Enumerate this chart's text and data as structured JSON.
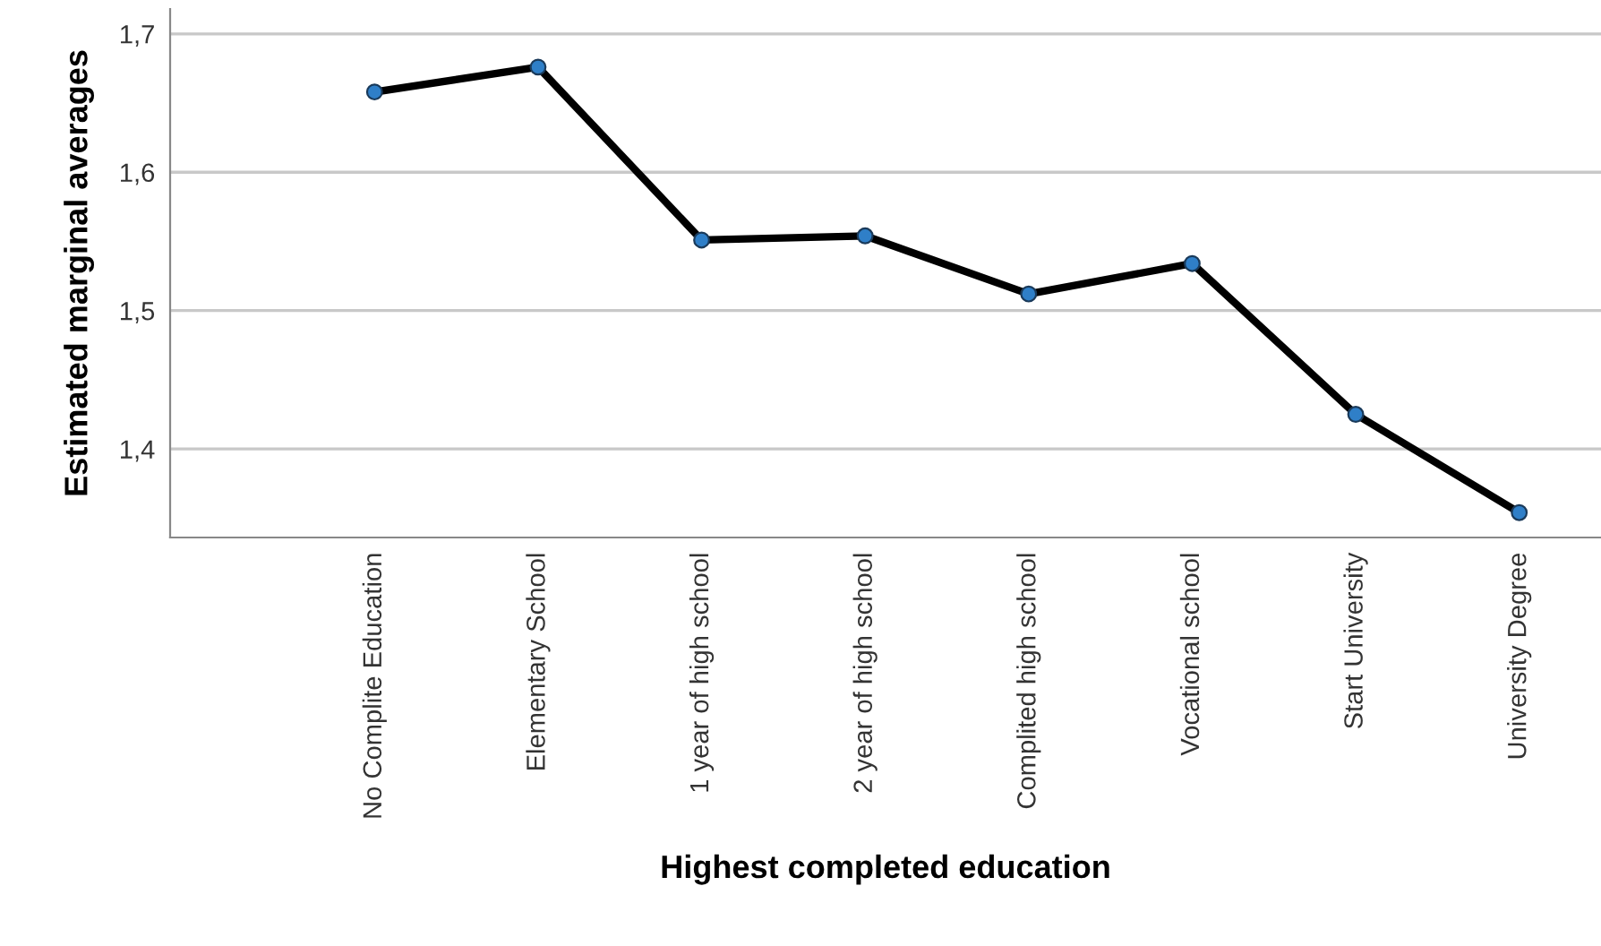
{
  "chart_data": {
    "type": "line",
    "xlabel": "Highest completed education",
    "ylabel": "Estimated marginal averages",
    "categories": [
      "No Complite Education",
      "Elementary School",
      "1 year of high school",
      "2 year of high school",
      "Complited high school",
      "Vocational school",
      "Start University",
      "University Degree"
    ],
    "series": [
      {
        "color": "#000000",
        "values": [
          1.658,
          1.676,
          1.551,
          1.554,
          1.512,
          1.534,
          1.425,
          1.354
        ]
      }
    ],
    "marker": "circle",
    "line_style": "solid",
    "ylim": [
      1.336,
      1.718
    ],
    "yticks": [
      {
        "value": 1.4,
        "label": "1,4"
      },
      {
        "value": 1.5,
        "label": "1,5"
      },
      {
        "value": 1.6,
        "label": "1,6"
      },
      {
        "value": 1.7,
        "label": "1,7"
      }
    ],
    "grid": "y",
    "legend": false
  }
}
